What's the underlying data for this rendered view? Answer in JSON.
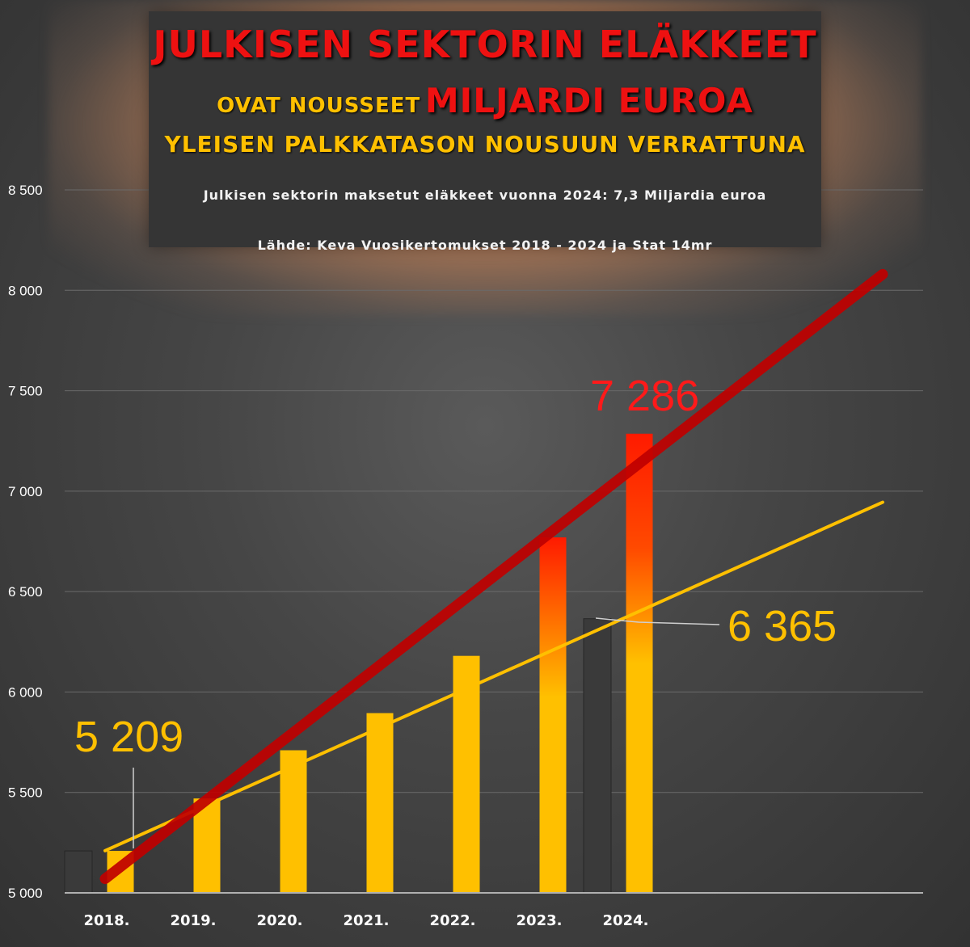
{
  "title": {
    "line1": "JULKISEN SEKTORIN ELÄKKEET",
    "line2_part1": "OVAT NOUSSEET",
    "line2_part2": "MILJARDI EUROA",
    "line3": "YLEISEN PALKKATASON NOUSUUN VERRATTUNA",
    "subtitle": "Julkisen sektorin maksetut eläkkeet vuonna 2024: 7,3 Miljardia euroa",
    "source": "Lähde: Keva Vuosikertomukset 2018 - 2024 ja Stat 14mr"
  },
  "colors": {
    "pension": "#ffc000",
    "pension_top": "#ff1a00",
    "trend_red": "#c00000",
    "trend_yellow": "#ffc000",
    "axis_text": "#ffffff",
    "label_yellow": "#ffc000",
    "label_red": "#ff1a1a"
  },
  "chart_data": {
    "type": "bar",
    "categories": [
      "2018.",
      "2019.",
      "2020.",
      "2021.",
      "2022.",
      "2023.",
      "2024."
    ],
    "series": [
      {
        "values": [
          5209,
          5470,
          5710,
          5895,
          6180,
          6770,
          7286
        ]
      },
      {
        "values": [
          5209,
          null,
          null,
          null,
          null,
          null,
          6365
        ]
      }
    ],
    "trendlines": [
      {
        "color": "red",
        "from": 5070,
        "to": 8080
      },
      {
        "color": "yellow",
        "from": 5210,
        "to": 6945
      }
    ],
    "yticks": [
      "5 000",
      "5 500",
      "6 000",
      "6 500",
      "7 000",
      "7 500",
      "8 000",
      "8 500"
    ],
    "ylim": [
      5000,
      8500
    ],
    "grid": true,
    "data_labels": {
      "first": "5 209",
      "last_pension": "7 286",
      "last_wage": "6 365"
    }
  }
}
